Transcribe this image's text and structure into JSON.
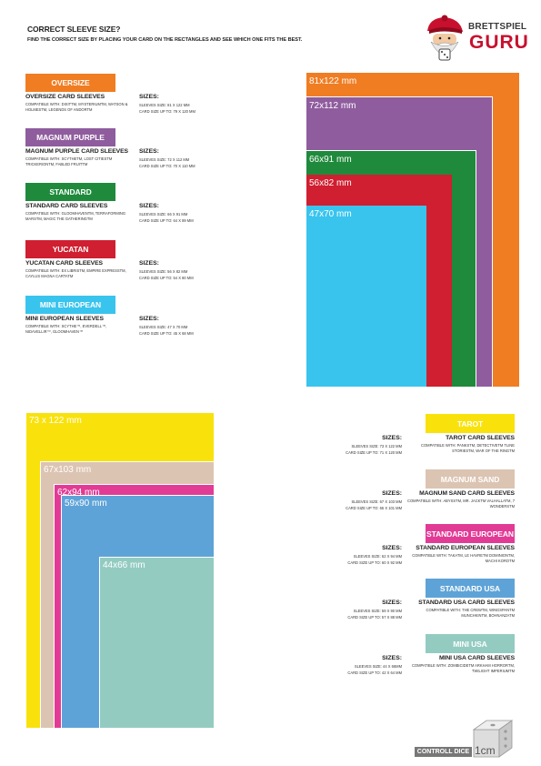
{
  "header": {
    "title": "CORRECT SLEEVE SIZE?",
    "subtitle": "FIND THE CORRECT SIZE BY PLACING YOUR CARD ON THE RECTANGLES AND SEE WHICH ONE FITS THE BEST."
  },
  "logo": {
    "top": "BRETTSPIEL",
    "bottom": "GURU"
  },
  "top_left": [
    {
      "tag": "OVERSIZE",
      "color": "#f07d22",
      "title": "OVERSIZE CARD SLEEVES",
      "compat": "COMPATIBLE WITH: DIXITTM, MYSTERIUMTM, WATSON & HOLMESTM, LEGENDS OF ANDORTM",
      "sizes_label": "SIZES:",
      "sleeve": "SLEEVES SIZE: 81 X 122 MM",
      "card": "CARD SIZE UP TO: 79 X 120 MM"
    },
    {
      "tag": "MAGNUM PURPLE",
      "color": "#8f5c9e",
      "title": "MAGNUM PURPLE CARD SLEEVES",
      "compat": "COMPATIBLE WITH: SCYTHETM, LOST CITIESTM TRICKERIONTM, FABLED FRUITTM",
      "sizes_label": "SIZES:",
      "sleeve": "SLEEVES SIZE: 72 X 112 MM",
      "card": "CARD SIZE UP TO: 70 X 110 MM"
    },
    {
      "tag": "STANDARD",
      "color": "#1f8a3c",
      "title": "STANDARD CARD SLEEVES",
      "compat": "COMPATIBLE WITH: GLOOMHAVENTM, TERRAFORMING MARSTM, MAGIC THE GATHERINGTM",
      "sizes_label": "SIZES:",
      "sleeve": "SLEEVES SIZE: 66 X 91 MM",
      "card": "CARD SIZE UP TO: 64 X 89 MM"
    },
    {
      "tag": "YUCATAN",
      "color": "#cf1f30",
      "title": "YUCATAN CARD SLEEVES",
      "compat": "COMPATIBLE WITH: EX LIBRISTM, EMPIRE EXPRESSTM, CAYLUS MAGNA CARTATM",
      "sizes_label": "SIZES:",
      "sleeve": "SLEEVES SIZE: 56 X 82 MM",
      "card": "CARD SIZE UP TO: 54 X 80 MM"
    },
    {
      "tag": "MINI EUROPEAN",
      "color": "#39c4ee",
      "title": "MINI EUROPEAN SLEEVES",
      "compat": "COMPATIBLE WITH: SCYTHE™, EVERDELL™, NIDAVELLIR™, GLOOMHAVEN™",
      "sizes_label": "SIZES:",
      "sleeve": "SLEEVES SIZE: 47 X 70 MM",
      "card": "CARD SIZE UP TO: 45 X 68 MM"
    }
  ],
  "top_rects": [
    {
      "label": "81x122 mm",
      "color": "#f07d22"
    },
    {
      "label": "72x112 mm",
      "color": "#8f5c9e"
    },
    {
      "label": "66x91 mm",
      "color": "#1f8a3c"
    },
    {
      "label": "56x82 mm",
      "color": "#cf1f30"
    },
    {
      "label": "47x70 mm",
      "color": "#39c4ee"
    }
  ],
  "bottom_rects": [
    {
      "label": "73 x 122 mm",
      "color": "#f9e10c"
    },
    {
      "label": "67x103 mm",
      "color": "#dcc4b2"
    },
    {
      "label": "62x94 mm",
      "color": "#e23b96"
    },
    {
      "label": "59x90 mm",
      "color": "#5ea3d7"
    },
    {
      "label": "44x66 mm",
      "color": "#93cbc1"
    }
  ],
  "bottom_right": [
    {
      "tag": "TAROT",
      "color": "#f9e10c",
      "title": "TAROT CARD SLEEVES",
      "compat": "COMPATIBLE WITH: PANKSTM, DETECTIVETM TLINE STORIESTM, WAR OF THE RINGTM",
      "sizes_label": "SIZES:",
      "sleeve": "SLEEVES SIZE: 73 X 122 MM",
      "card": "CARD SIZE UP TO: 71 X 120 MM"
    },
    {
      "tag": "MAGNUM SAND",
      "color": "#dcc4b2",
      "title": "MAGNUM SAND CARD SLEEVES",
      "compat": "COMPATIBLE WITH: ABYSSTM, MR. JACKTM VALHALLATM, 7 WONDERSTM",
      "sizes_label": "SIZES:",
      "sleeve": "SLEEVES SIZE: 67 X 103 MM",
      "card": "CARD SIZE UP TO: 65 X 101 MM"
    },
    {
      "tag": "STANDARD EUROPEAN",
      "color": "#e23b96",
      "title": "STANDARD EUROPEAN SLEEVES",
      "compat": "COMPATIBLE WITH: TAKATM, LE HAVRETM DOMINIONTM, MACHI KOROTM",
      "sizes_label": "SIZES:",
      "sleeve": "SLEEVES SIZE: 62 X 94 MM",
      "card": "CARD SIZE UP TO: 60 X 92 MM"
    },
    {
      "tag": "STANDARD USA",
      "color": "#5ea3d7",
      "title": "STANDARD USA CARD SLEEVES",
      "compat": "COMPATIBLE WITH: THE CREWTM, WINGSPANTM MUNCHKINTM, BOHNANZATM",
      "sizes_label": "SIZES:",
      "sleeve": "SLEEVES SIZE: 59 X 90 MM",
      "card": "CARD SIZE UP TO: 57 X 88 MM"
    },
    {
      "tag": "MINI USA",
      "color": "#93cbc1",
      "title": "MINI USA CARD SLEEVES",
      "compat": "COMPATIBLE WITH: ZOMBICIDETM ARKHAM HORRORTM, TWILIGHT IMPERIUMTM",
      "sizes_label": "SIZES:",
      "sleeve": "SLEEVES SIZE: 44 X 66MM",
      "card": "CARD SIZE UP TO: 42 X 64 MM"
    }
  ],
  "dice": {
    "label": "CONTROLL DICE",
    "size": "1cm"
  }
}
